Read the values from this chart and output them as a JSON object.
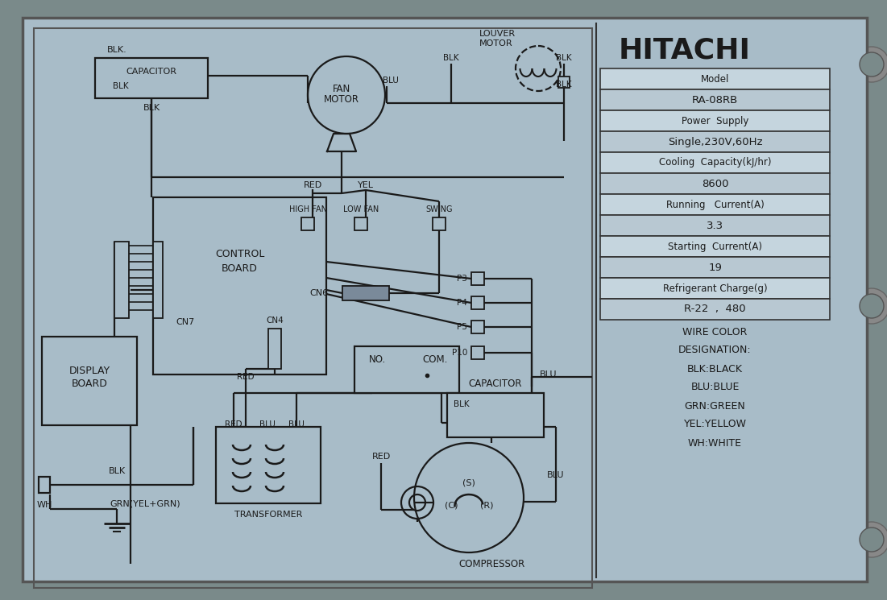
{
  "bg_outer": "#7a8a8a",
  "bg_sticker": "#a8bcc8",
  "line_color": "#1a1a1a",
  "text_color": "#1a1a1a",
  "table_bg_light": "#c5d5de",
  "table_bg_dark": "#b8c8d2",
  "brand": "HITACHI",
  "model_rows": [
    [
      "Model",
      false
    ],
    [
      "RA-08RB",
      true
    ],
    [
      "Power  Supply",
      false
    ],
    [
      "Single,230V,60Hz",
      true
    ],
    [
      "Cooling  Capacity(kJ/hr)",
      false
    ],
    [
      "8600",
      true
    ],
    [
      "Running   Current(A)",
      false
    ],
    [
      "3.3",
      true
    ],
    [
      "Starting  Current(A)",
      false
    ],
    [
      "19",
      true
    ],
    [
      "Refrigerant Charge(g)",
      false
    ],
    [
      "R-22  ,  480",
      true
    ]
  ],
  "wire_colors": [
    "WIRE COLOR",
    "DESIGNATION:",
    "BLK:BLACK",
    "BLU:BLUE",
    "GRN:GREEN",
    "YEL:YELLOW",
    "WH:WHITE"
  ]
}
